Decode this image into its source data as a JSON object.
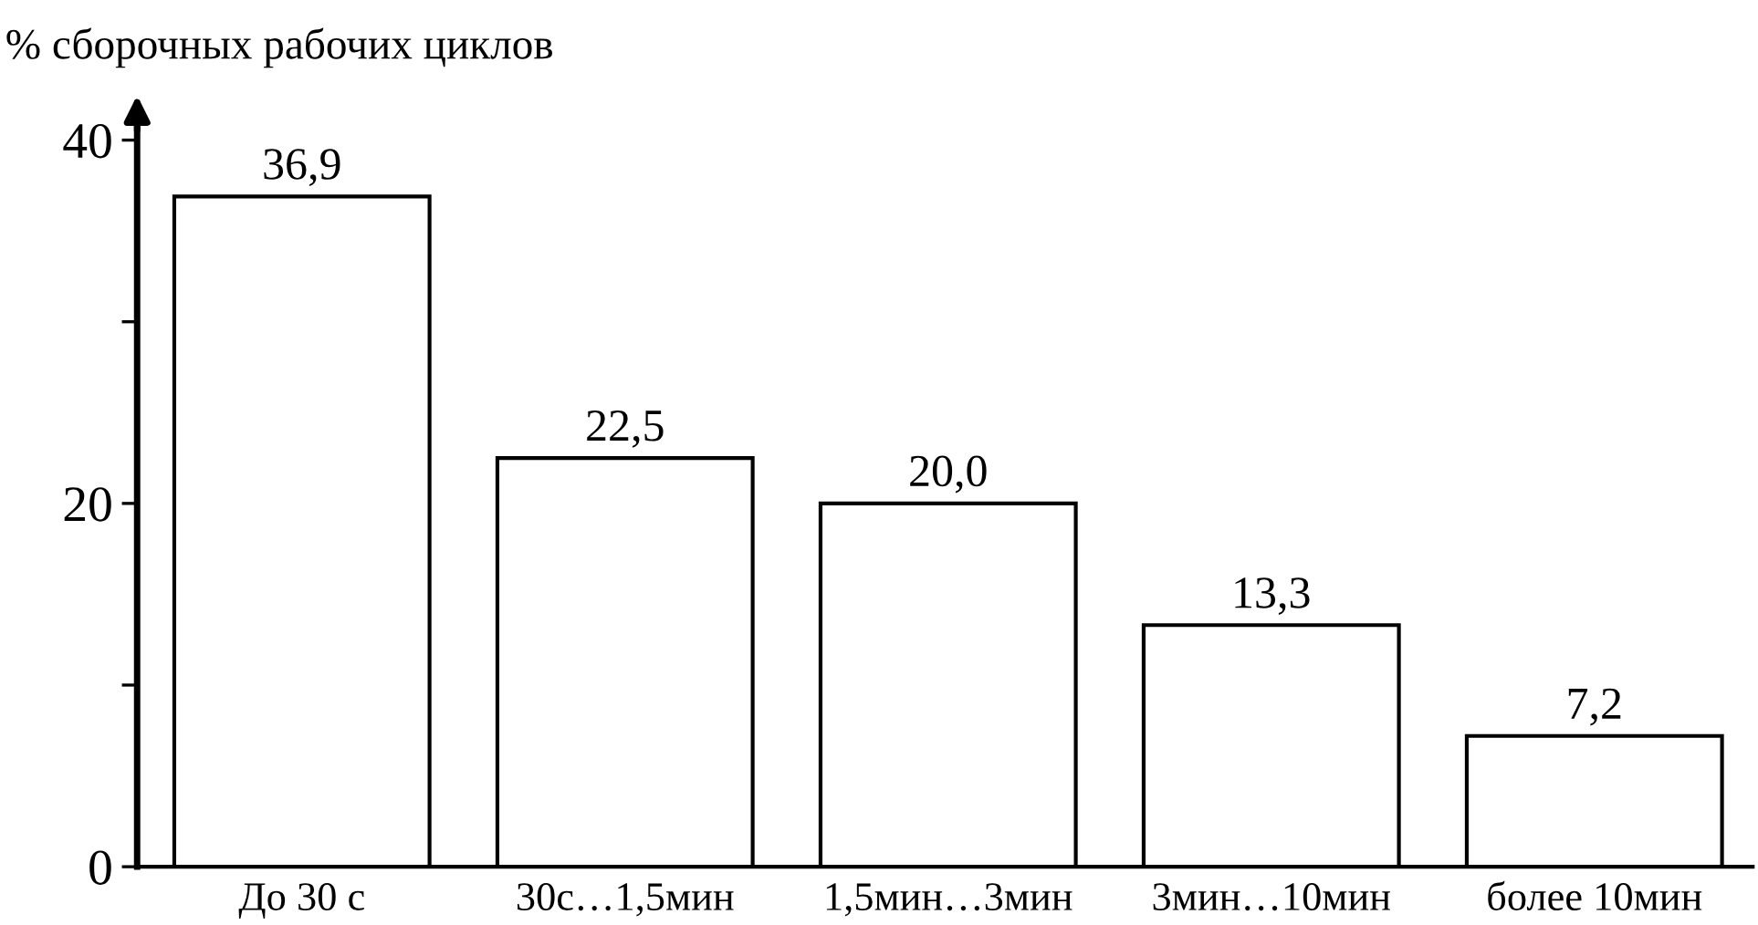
{
  "chart_data": {
    "type": "bar",
    "ylabel": "% сборочных рабочих циклов",
    "categories": [
      "До 30 с",
      "30с…1,5мин",
      "1,5мин…3мин",
      "3мин…10мин",
      "более 10мин"
    ],
    "values": [
      36.9,
      22.5,
      20.0,
      13.3,
      7.2
    ],
    "value_labels": [
      "36,9",
      "22,5",
      "20,0",
      "13,3",
      "7,2"
    ],
    "color": "#ffffff",
    "ylim": [
      0,
      41.5
    ],
    "yticks": [
      0,
      {
        "value": 10,
        "label": null
      },
      20,
      {
        "value": 30,
        "label": null
      },
      40
    ],
    "grid": false,
    "legend": false
  }
}
